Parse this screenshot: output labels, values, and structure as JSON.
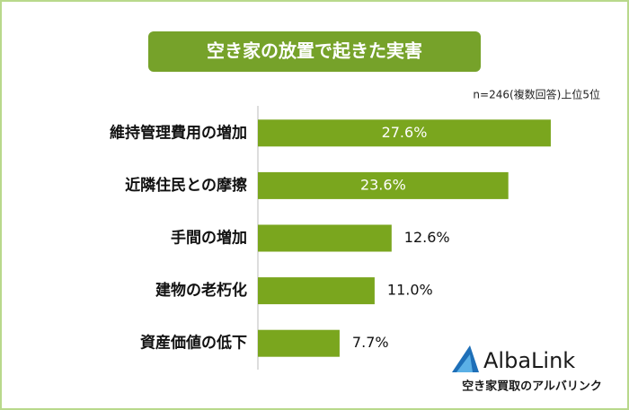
{
  "chart_data": {
    "type": "bar",
    "orientation": "horizontal",
    "title": "空き家の放置で起きた実害",
    "subtitle": "n=246(複数回答)上位5位",
    "categories": [
      "維持管理費用の増加",
      "近隣住民との摩擦",
      "手間の増加",
      "建物の老朽化",
      "資産価値の低下"
    ],
    "values": [
      27.6,
      23.6,
      12.6,
      11.0,
      7.7
    ],
    "value_labels": [
      "27.6%",
      "23.6%",
      "12.6%",
      "11.0%",
      "7.7%"
    ],
    "color": "#7aa61e"
  },
  "logo": {
    "name": "AlbaLink",
    "tagline": "空き家買取のアルバリンク"
  }
}
